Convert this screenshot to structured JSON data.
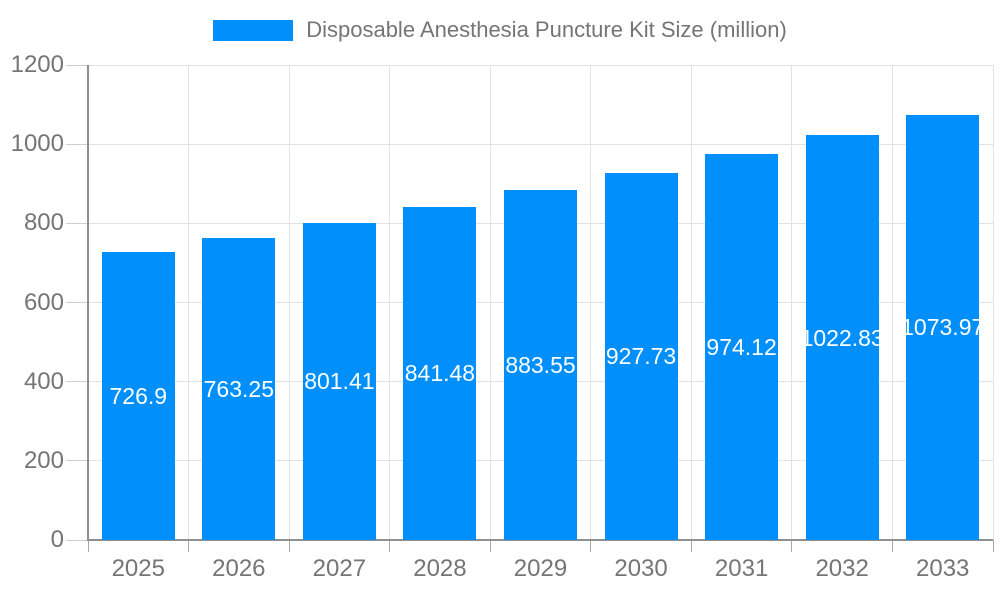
{
  "chart_data": {
    "type": "bar",
    "title": "Disposable Anesthesia Puncture Kit Size (million)",
    "legend": [
      "Disposable Anesthesia Puncture Kit Size (million)"
    ],
    "legend_position": "top",
    "categories": [
      "2025",
      "2026",
      "2027",
      "2028",
      "2029",
      "2030",
      "2031",
      "2032",
      "2033"
    ],
    "values": [
      726.9,
      763.25,
      801.41,
      841.48,
      883.55,
      927.73,
      974.12,
      1022.83,
      1073.97
    ],
    "xlabel": "",
    "ylabel": "",
    "ylim": [
      0,
      1200
    ],
    "yticks": [
      0,
      200,
      400,
      600,
      800,
      1000,
      1200
    ],
    "grid": true,
    "colors": {
      "bar": "#008ffb",
      "bar_value_label": "#ffffff",
      "axis_line": "#8f8f8f",
      "grid_line": "#e2e2e2",
      "y_tick": "#cfcfcf",
      "x_tick": "#a8a8a8",
      "tick_label": "#757575",
      "legend_text": "#757575",
      "background": "#ffffff"
    }
  }
}
